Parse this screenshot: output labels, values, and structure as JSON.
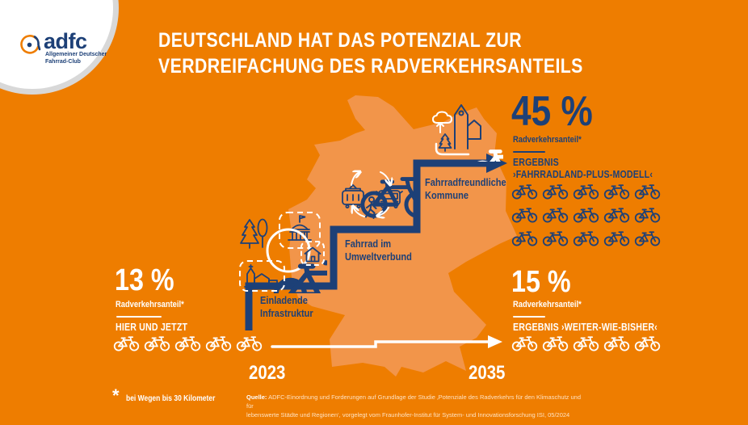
{
  "logo": {
    "brand": "adfc",
    "subtitle_line1": "Allgemeiner Deutscher",
    "subtitle_line2": "Fahrrad-Club"
  },
  "title": {
    "line1": "DEUTSCHLAND HAT DAS POTENZIAL ZUR",
    "line2": "VERDREIFACHUNG DES RADVERKEHRSANTEILS"
  },
  "stats": {
    "now": {
      "value": "13 %",
      "label": "Radverkehrsanteil*",
      "sublabel": "HIER UND JETZT",
      "bikes": 5
    },
    "plus_model": {
      "value": "45 %",
      "label": "Radverkehrsanteil*",
      "sublabel_line1": "ERGEBNIS",
      "sublabel_line2": "›FAHRRADLAND-PLUS-MODELL‹",
      "bikes": 15
    },
    "business_as_usual": {
      "value": "15 %",
      "label": "Radverkehrsanteil*",
      "sublabel": "ERGEBNIS ›WEITER-WIE-BISHER‹",
      "bikes": 5
    }
  },
  "steps": [
    {
      "line1": "Einladende",
      "line2": "Infrastruktur"
    },
    {
      "line1": "Fahrrad im",
      "line2": "Umweltverbund"
    },
    {
      "line1": "Fahrradfreundliche",
      "line2": "Kommune"
    }
  ],
  "timeline": {
    "start": "2023",
    "end": "2035"
  },
  "footnote": {
    "marker": "*",
    "text": "bei Wegen bis 30 Kilometer"
  },
  "source": {
    "label": "Quelle:",
    "text_line1": "ADFC-Einordnung und Forderungen auf Grundlage der Studie ‚Potenziale des Radverkehrs für den Klimaschutz und für",
    "text_line2": "lebenswerte Städte und Regionen‘, vorgelegt vom Fraunhofer-Institut für System- und Innovationsforschung ISI, 05/2024"
  },
  "colors": {
    "background": "#ee7d00",
    "map": "#f2954a",
    "blue": "#1d4077",
    "white": "#ffffff",
    "logo_rim": "#d8d8d8"
  },
  "icons": {
    "cluster_infrastructure": [
      "pine-tree-icon",
      "round-tree-icon",
      "town-hall-icon",
      "house-icon",
      "church-icon",
      "bicycle-icon"
    ],
    "cluster_umweltverbund": [
      "bicycle-icon",
      "tram-icon",
      "bus-icon",
      "pedestrian-icon",
      "cycle-arrows-icon"
    ],
    "cluster_kommune": [
      "cloud-icon",
      "city-buildings-icon",
      "pine-tree-icon",
      "arrow-up-icon",
      "bicycle-icon"
    ],
    "pictogram": "bicycle-icon"
  },
  "chart_data": {
    "type": "bar",
    "title": "Deutschland hat das Potenzial zur Verdreifachung des Radverkehrsanteils",
    "categories": [
      "2023 · Hier und jetzt",
      "2035 · Ergebnis ›Weiter-wie-bisher‹",
      "2035 · Ergebnis ›Fahrradland-Plus-Modell‹"
    ],
    "values": [
      13,
      15,
      45
    ],
    "unit": "% Radverkehrsanteil (bei Wegen bis 30 Kilometer)",
    "ylim": [
      0,
      50
    ],
    "legend_position": "none",
    "grid": false
  }
}
